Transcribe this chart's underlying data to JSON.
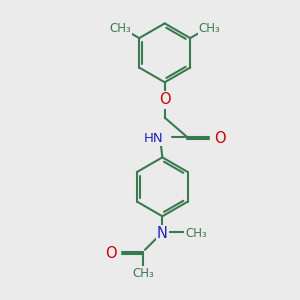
{
  "bg_color": "#ebebeb",
  "bond_color": "#3a7a50",
  "atom_colors": {
    "O": "#cc0000",
    "N": "#2222bb",
    "C": "#3a7a50"
  },
  "line_width": 1.5,
  "font_size": 9.5,
  "fig_size": [
    3.0,
    3.0
  ],
  "dpi": 100,
  "xlim": [
    -4,
    4
  ],
  "ylim": [
    -5.5,
    4.5
  ]
}
